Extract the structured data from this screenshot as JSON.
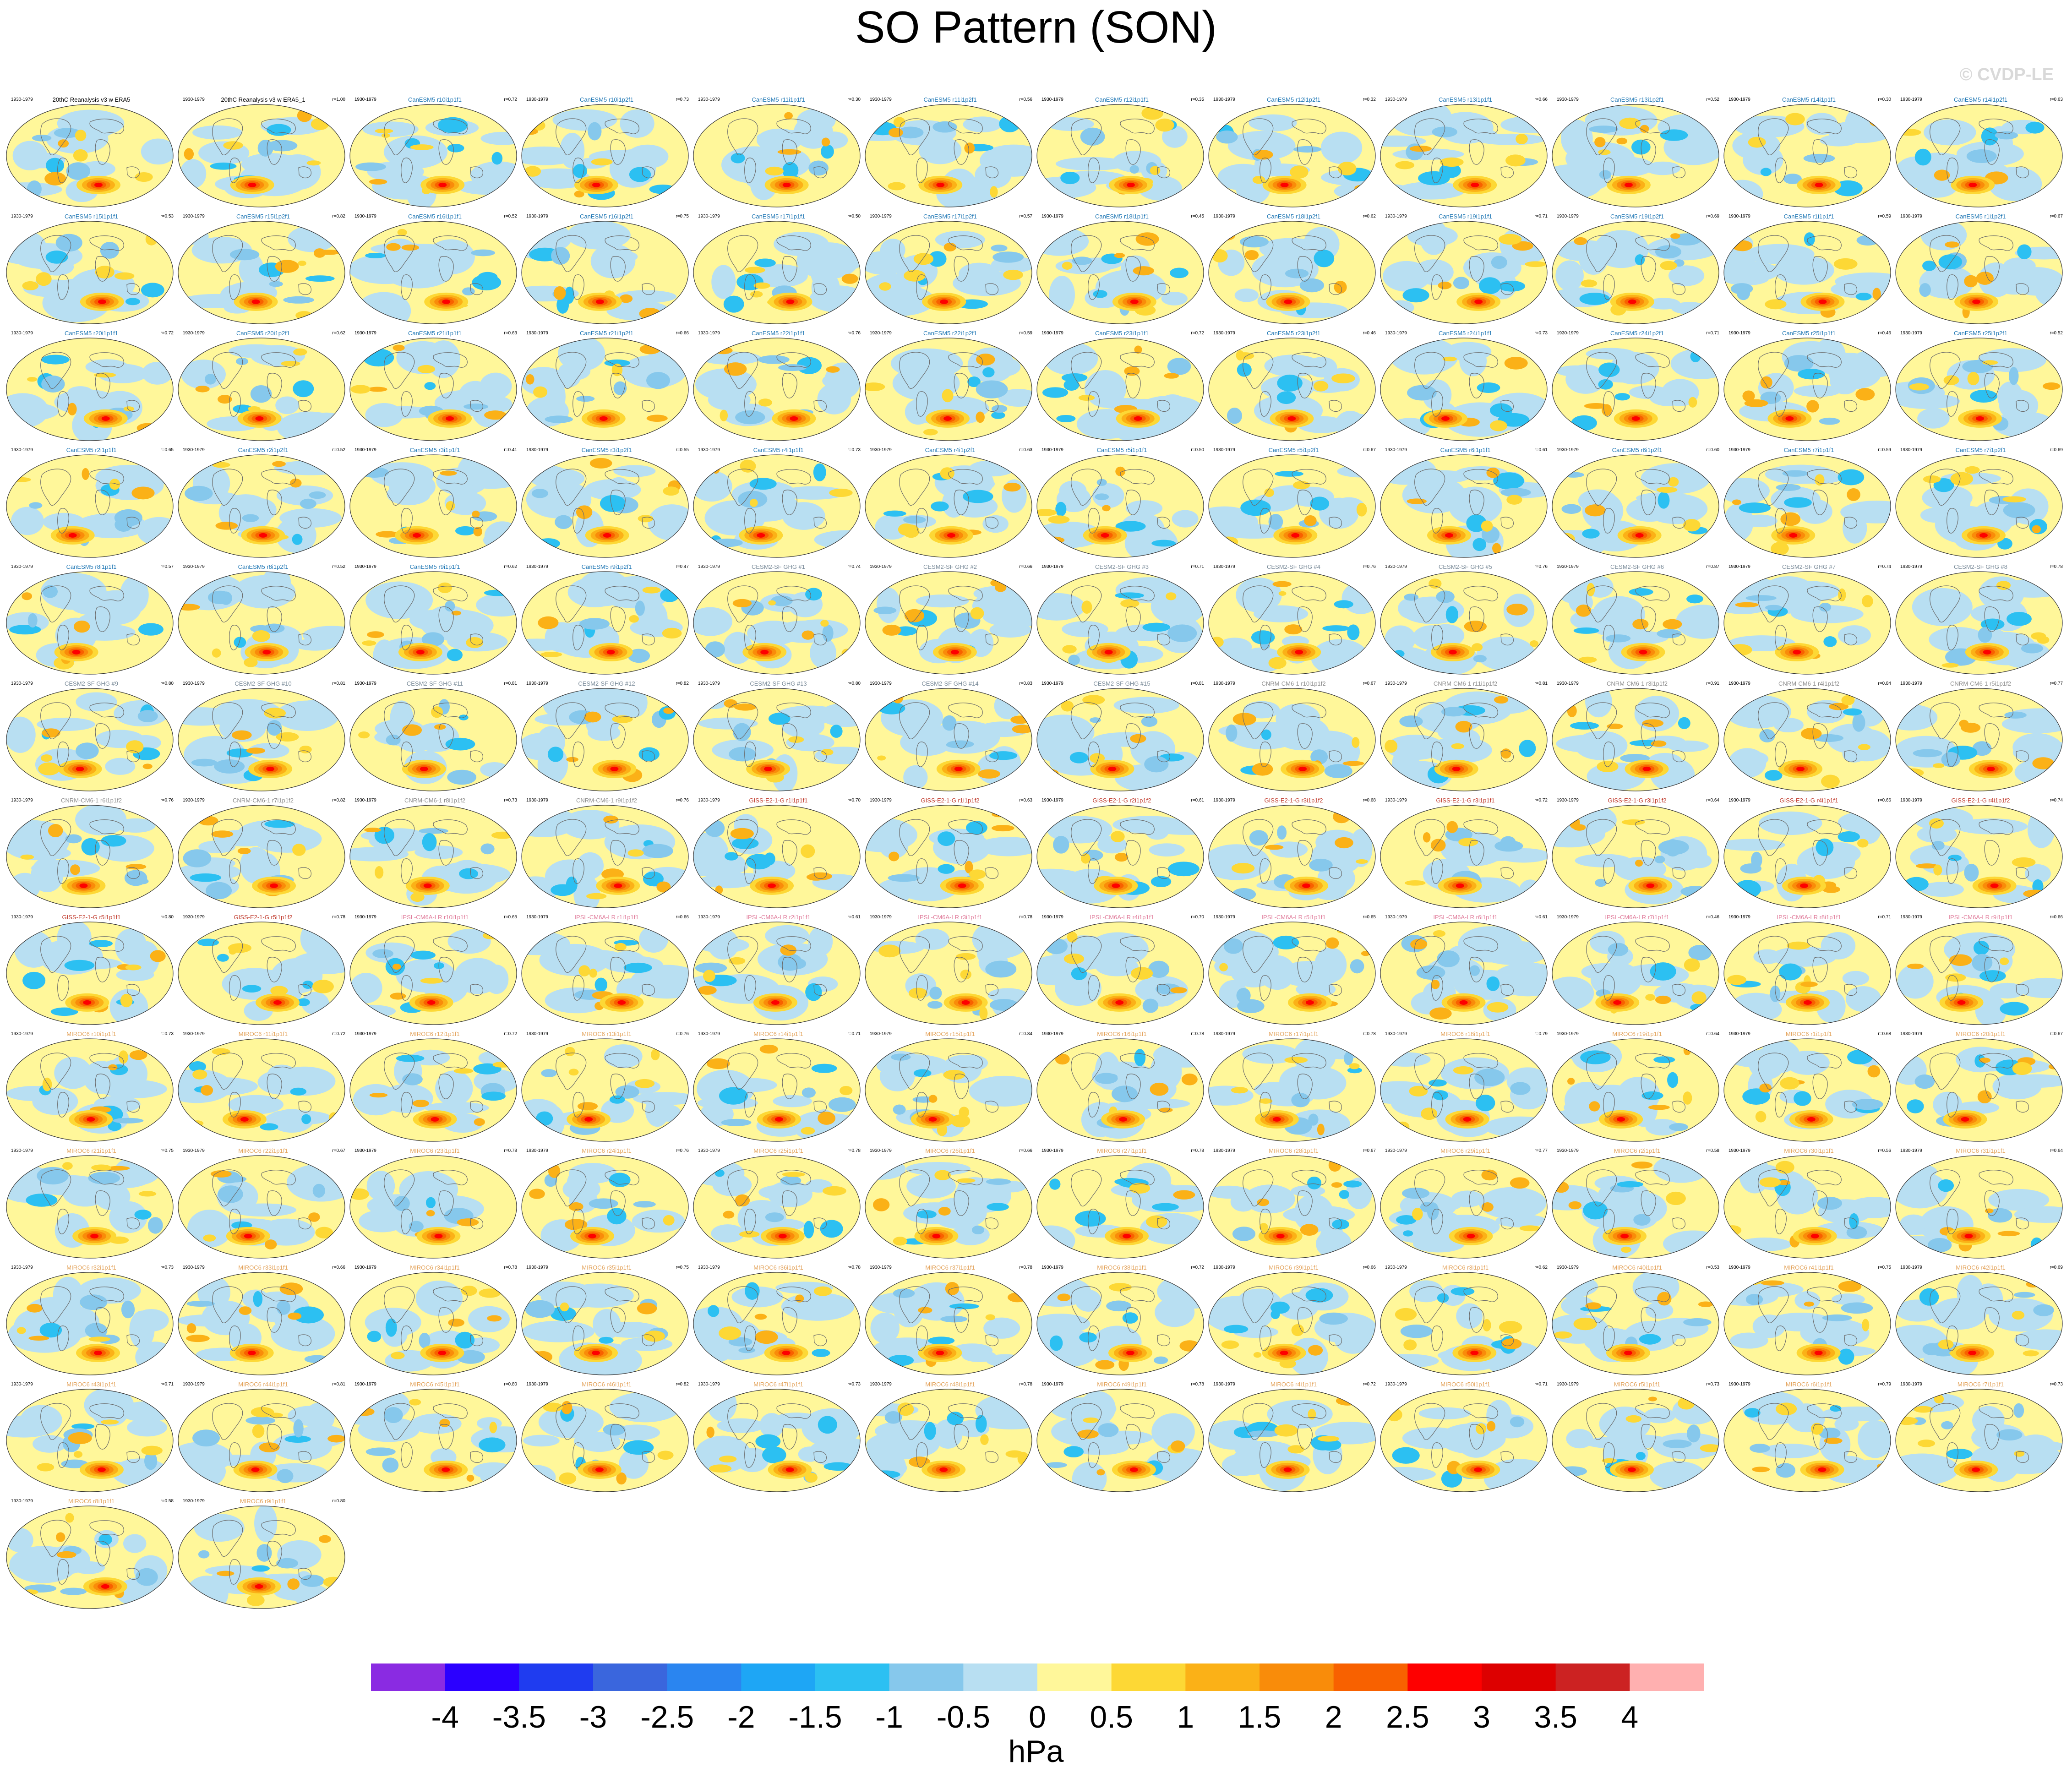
{
  "title": "SO Pattern (SON)",
  "copyright": "© CVDP-LE",
  "chart_data": {
    "type": "heatmap",
    "title": "SO Pattern (SON)",
    "period": "1930-1979",
    "colorbar": {
      "units": "hPa",
      "ticks": [
        "-4",
        "-3.5",
        "-3",
        "-2.5",
        "-2",
        "-1.5",
        "-1",
        "-0.5",
        "0",
        "0.5",
        "1",
        "1.5",
        "2",
        "2.5",
        "3",
        "3.5",
        "4"
      ],
      "colors": [
        "#8a2be2",
        "#2b00ff",
        "#1f3cf0",
        "#3a66dd",
        "#2a85f0",
        "#1ea6f5",
        "#2cc0f2",
        "#86c8ec",
        "#b8dff2",
        "#fff79a",
        "#fdd835",
        "#fbb117",
        "#f98c0a",
        "#f86100",
        "#fe0000",
        "#dd0000",
        "#cc2222",
        "#ffb0b0"
      ]
    },
    "panels": [
      {
        "name": "20thC Reanalysis v3 w ERA5",
        "corr": "",
        "color": "#000000"
      },
      {
        "name": "20thC Reanalysis v3 w ERA5_1",
        "corr": "r=1.00",
        "color": "#000000"
      },
      {
        "name": "CanESM5 r10i1p1f1",
        "corr": "r=0.72",
        "color": "#1f77b4"
      },
      {
        "name": "CanESM5 r10i1p2f1",
        "corr": "r=0.73",
        "color": "#1f77b4"
      },
      {
        "name": "CanESM5 r11i1p1f1",
        "corr": "r=0.30",
        "color": "#1f77b4"
      },
      {
        "name": "CanESM5 r11i1p2f1",
        "corr": "r=0.56",
        "color": "#1f77b4"
      },
      {
        "name": "CanESM5 r12i1p1f1",
        "corr": "r=0.35",
        "color": "#1f77b4"
      },
      {
        "name": "CanESM5 r12i1p2f1",
        "corr": "r=0.32",
        "color": "#1f77b4"
      },
      {
        "name": "CanESM5 r13i1p1f1",
        "corr": "r=0.66",
        "color": "#1f77b4"
      },
      {
        "name": "CanESM5 r13i1p2f1",
        "corr": "r=0.52",
        "color": "#1f77b4"
      },
      {
        "name": "CanESM5 r14i1p1f1",
        "corr": "r=0.30",
        "color": "#1f77b4"
      },
      {
        "name": "CanESM5 r14i1p2f1",
        "corr": "r=0.63",
        "color": "#1f77b4"
      },
      {
        "name": "CanESM5 r15i1p1f1",
        "corr": "r=0.53",
        "color": "#1f77b4"
      },
      {
        "name": "CanESM5 r15i1p2f1",
        "corr": "r=0.82",
        "color": "#1f77b4"
      },
      {
        "name": "CanESM5 r16i1p1f1",
        "corr": "r=0.52",
        "color": "#1f77b4"
      },
      {
        "name": "CanESM5 r16i1p2f1",
        "corr": "r=0.75",
        "color": "#1f77b4"
      },
      {
        "name": "CanESM5 r17i1p1f1",
        "corr": "r=0.50",
        "color": "#1f77b4"
      },
      {
        "name": "CanESM5 r17i1p2f1",
        "corr": "r=0.57",
        "color": "#1f77b4"
      },
      {
        "name": "CanESM5 r18i1p1f1",
        "corr": "r=0.45",
        "color": "#1f77b4"
      },
      {
        "name": "CanESM5 r18i1p2f1",
        "corr": "r=0.62",
        "color": "#1f77b4"
      },
      {
        "name": "CanESM5 r19i1p1f1",
        "corr": "r=0.71",
        "color": "#1f77b4"
      },
      {
        "name": "CanESM5 r19i1p2f1",
        "corr": "r=0.69",
        "color": "#1f77b4"
      },
      {
        "name": "CanESM5 r1i1p1f1",
        "corr": "r=0.59",
        "color": "#1f77b4"
      },
      {
        "name": "CanESM5 r1i1p2f1",
        "corr": "r=0.67",
        "color": "#1f77b4"
      },
      {
        "name": "CanESM5 r20i1p1f1",
        "corr": "r=0.72",
        "color": "#1f77b4"
      },
      {
        "name": "CanESM5 r20i1p2f1",
        "corr": "r=0.62",
        "color": "#1f77b4"
      },
      {
        "name": "CanESM5 r21i1p1f1",
        "corr": "r=0.63",
        "color": "#1f77b4"
      },
      {
        "name": "CanESM5 r21i1p2f1",
        "corr": "r=0.66",
        "color": "#1f77b4"
      },
      {
        "name": "CanESM5 r22i1p1f1",
        "corr": "r=0.76",
        "color": "#1f77b4"
      },
      {
        "name": "CanESM5 r22i1p2f1",
        "corr": "r=0.59",
        "color": "#1f77b4"
      },
      {
        "name": "CanESM5 r23i1p1f1",
        "corr": "r=0.72",
        "color": "#1f77b4"
      },
      {
        "name": "CanESM5 r23i1p2f1",
        "corr": "r=0.46",
        "color": "#1f77b4"
      },
      {
        "name": "CanESM5 r24i1p1f1",
        "corr": "r=0.73",
        "color": "#1f77b4"
      },
      {
        "name": "CanESM5 r24i1p2f1",
        "corr": "r=0.71",
        "color": "#1f77b4"
      },
      {
        "name": "CanESM5 r25i1p1f1",
        "corr": "r=0.46",
        "color": "#1f77b4"
      },
      {
        "name": "CanESM5 r25i1p2f1",
        "corr": "r=0.52",
        "color": "#1f77b4"
      },
      {
        "name": "CanESM5 r2i1p1f1",
        "corr": "r=0.65",
        "color": "#1f77b4"
      },
      {
        "name": "CanESM5 r2i1p2f1",
        "corr": "r=0.52",
        "color": "#1f77b4"
      },
      {
        "name": "CanESM5 r3i1p1f1",
        "corr": "r=0.41",
        "color": "#1f77b4"
      },
      {
        "name": "CanESM5 r3i1p2f1",
        "corr": "r=0.55",
        "color": "#1f77b4"
      },
      {
        "name": "CanESM5 r4i1p1f1",
        "corr": "r=0.73",
        "color": "#1f77b4"
      },
      {
        "name": "CanESM5 r4i1p2f1",
        "corr": "r=0.63",
        "color": "#1f77b4"
      },
      {
        "name": "CanESM5 r5i1p1f1",
        "corr": "r=0.50",
        "color": "#1f77b4"
      },
      {
        "name": "CanESM5 r5i1p2f1",
        "corr": "r=0.67",
        "color": "#1f77b4"
      },
      {
        "name": "CanESM5 r6i1p1f1",
        "corr": "r=0.61",
        "color": "#1f77b4"
      },
      {
        "name": "CanESM5 r6i1p2f1",
        "corr": "r=0.60",
        "color": "#1f77b4"
      },
      {
        "name": "CanESM5 r7i1p1f1",
        "corr": "r=0.59",
        "color": "#1f77b4"
      },
      {
        "name": "CanESM5 r7i1p2f1",
        "corr": "r=0.69",
        "color": "#1f77b4"
      },
      {
        "name": "CanESM5 r8i1p1f1",
        "corr": "r=0.57",
        "color": "#1f77b4"
      },
      {
        "name": "CanESM5 r8i1p2f1",
        "corr": "r=0.52",
        "color": "#1f77b4"
      },
      {
        "name": "CanESM5 r9i1p1f1",
        "corr": "r=0.62",
        "color": "#1f77b4"
      },
      {
        "name": "CanESM5 r9i1p2f1",
        "corr": "r=0.47",
        "color": "#1f77b4"
      },
      {
        "name": "CESM2-SF GHG #1",
        "corr": "r=0.74",
        "color": "#7a8b99"
      },
      {
        "name": "CESM2-SF GHG #2",
        "corr": "r=0.66",
        "color": "#7a8b99"
      },
      {
        "name": "CESM2-SF GHG #3",
        "corr": "r=0.71",
        "color": "#7a8b99"
      },
      {
        "name": "CESM2-SF GHG #4",
        "corr": "r=0.76",
        "color": "#7a8b99"
      },
      {
        "name": "CESM2-SF GHG #5",
        "corr": "r=0.76",
        "color": "#7a8b99"
      },
      {
        "name": "CESM2-SF GHG #6",
        "corr": "r=0.87",
        "color": "#7a8b99"
      },
      {
        "name": "CESM2-SF GHG #7",
        "corr": "r=0.74",
        "color": "#7a8b99"
      },
      {
        "name": "CESM2-SF GHG #8",
        "corr": "r=0.78",
        "color": "#7a8b99"
      },
      {
        "name": "CESM2-SF GHG #9",
        "corr": "r=0.80",
        "color": "#7a8b99"
      },
      {
        "name": "CESM2-SF GHG #10",
        "corr": "r=0.81",
        "color": "#7a8b99"
      },
      {
        "name": "CESM2-SF GHG #11",
        "corr": "r=0.81",
        "color": "#7a8b99"
      },
      {
        "name": "CESM2-SF GHG #12",
        "corr": "r=0.82",
        "color": "#7a8b99"
      },
      {
        "name": "CESM2-SF GHG #13",
        "corr": "r=0.80",
        "color": "#7a8b99"
      },
      {
        "name": "CESM2-SF GHG #14",
        "corr": "r=0.83",
        "color": "#7a8b99"
      },
      {
        "name": "CESM2-SF GHG #15",
        "corr": "r=0.81",
        "color": "#7a8b99"
      },
      {
        "name": "CNRM-CM6-1 r10i1p1f2",
        "corr": "r=0.67",
        "color": "#8c8c8c"
      },
      {
        "name": "CNRM-CM6-1 r11i1p1f2",
        "corr": "r=0.81",
        "color": "#8c8c8c"
      },
      {
        "name": "CNRM-CM6-1 r3i1p1f2",
        "corr": "r=0.91",
        "color": "#8c8c8c"
      },
      {
        "name": "CNRM-CM6-1 r4i1p1f2",
        "corr": "r=0.84",
        "color": "#8c8c8c"
      },
      {
        "name": "CNRM-CM6-1 r5i1p1f2",
        "corr": "r=0.77",
        "color": "#8c8c8c"
      },
      {
        "name": "CNRM-CM6-1 r6i1p1f2",
        "corr": "r=0.76",
        "color": "#8c8c8c"
      },
      {
        "name": "CNRM-CM6-1 r7i1p1f2",
        "corr": "r=0.82",
        "color": "#8c8c8c"
      },
      {
        "name": "CNRM-CM6-1 r8i1p1f2",
        "corr": "r=0.73",
        "color": "#8c8c8c"
      },
      {
        "name": "CNRM-CM6-1 r9i1p1f2",
        "corr": "r=0.76",
        "color": "#8c8c8c"
      },
      {
        "name": "GISS-E2-1-G r1i1p1f1",
        "corr": "r=0.70",
        "color": "#c0392b"
      },
      {
        "name": "GISS-E2-1-G r1i1p1f2",
        "corr": "r=0.63",
        "color": "#c0392b"
      },
      {
        "name": "GISS-E2-1-G r2i1p1f2",
        "corr": "r=0.61",
        "color": "#c0392b"
      },
      {
        "name": "GISS-E2-1-G r3i1p1f2",
        "corr": "r=0.68",
        "color": "#c0392b"
      },
      {
        "name": "GISS-E2-1-G r3i1p1f1",
        "corr": "r=0.72",
        "color": "#c0392b"
      },
      {
        "name": "GISS-E2-1-G r3i1p1f2",
        "corr": "r=0.64",
        "color": "#c0392b"
      },
      {
        "name": "GISS-E2-1-G r4i1p1f1",
        "corr": "r=0.66",
        "color": "#c0392b"
      },
      {
        "name": "GISS-E2-1-G r4i1p1f2",
        "corr": "r=0.74",
        "color": "#c0392b"
      },
      {
        "name": "GISS-E2-1-G r5i1p1f1",
        "corr": "r=0.80",
        "color": "#c0392b"
      },
      {
        "name": "GISS-E2-1-G r5i1p1f2",
        "corr": "r=0.78",
        "color": "#c0392b"
      },
      {
        "name": "IPSL-CM6A-LR r10i1p1f1",
        "corr": "r=0.65",
        "color": "#e07b9a"
      },
      {
        "name": "IPSL-CM6A-LR r1i1p1f1",
        "corr": "r=0.66",
        "color": "#e07b9a"
      },
      {
        "name": "IPSL-CM6A-LR r2i1p1f1",
        "corr": "r=0.61",
        "color": "#e07b9a"
      },
      {
        "name": "IPSL-CM6A-LR r3i1p1f1",
        "corr": "r=0.78",
        "color": "#e07b9a"
      },
      {
        "name": "IPSL-CM6A-LR r4i1p1f1",
        "corr": "r=0.70",
        "color": "#e07b9a"
      },
      {
        "name": "IPSL-CM6A-LR r5i1p1f1",
        "corr": "r=0.65",
        "color": "#e07b9a"
      },
      {
        "name": "IPSL-CM6A-LR r6i1p1f1",
        "corr": "r=0.61",
        "color": "#e07b9a"
      },
      {
        "name": "IPSL-CM6A-LR r7i1p1f1",
        "corr": "r=0.46",
        "color": "#e07b9a"
      },
      {
        "name": "IPSL-CM6A-LR r8i1p1f1",
        "corr": "r=0.71",
        "color": "#e07b9a"
      },
      {
        "name": "IPSL-CM6A-LR r9i1p1f1",
        "corr": "r=0.66",
        "color": "#e07b9a"
      },
      {
        "name": "MIROC6 r10i1p1f1",
        "corr": "r=0.73",
        "color": "#e3a35b"
      },
      {
        "name": "MIROC6 r11i1p1f1",
        "corr": "r=0.72",
        "color": "#e3a35b"
      },
      {
        "name": "MIROC6 r12i1p1f1",
        "corr": "r=0.72",
        "color": "#e3a35b"
      },
      {
        "name": "MIROC6 r13i1p1f1",
        "corr": "r=0.76",
        "color": "#e3a35b"
      },
      {
        "name": "MIROC6 r14i1p1f1",
        "corr": "r=0.71",
        "color": "#e3a35b"
      },
      {
        "name": "MIROC6 r15i1p1f1",
        "corr": "r=0.84",
        "color": "#e3a35b"
      },
      {
        "name": "MIROC6 r16i1p1f1",
        "corr": "r=0.78",
        "color": "#e3a35b"
      },
      {
        "name": "MIROC6 r17i1p1f1",
        "corr": "r=0.78",
        "color": "#e3a35b"
      },
      {
        "name": "MIROC6 r18i1p1f1",
        "corr": "r=0.79",
        "color": "#e3a35b"
      },
      {
        "name": "MIROC6 r19i1p1f1",
        "corr": "r=0.64",
        "color": "#e3a35b"
      },
      {
        "name": "MIROC6 r1i1p1f1",
        "corr": "r=0.68",
        "color": "#e3a35b"
      },
      {
        "name": "MIROC6 r20i1p1f1",
        "corr": "r=0.67",
        "color": "#e3a35b"
      },
      {
        "name": "MIROC6 r21i1p1f1",
        "corr": "r=0.75",
        "color": "#e3a35b"
      },
      {
        "name": "MIROC6 r22i1p1f1",
        "corr": "r=0.67",
        "color": "#e3a35b"
      },
      {
        "name": "MIROC6 r23i1p1f1",
        "corr": "r=0.78",
        "color": "#e3a35b"
      },
      {
        "name": "MIROC6 r24i1p1f1",
        "corr": "r=0.76",
        "color": "#e3a35b"
      },
      {
        "name": "MIROC6 r25i1p1f1",
        "corr": "r=0.78",
        "color": "#e3a35b"
      },
      {
        "name": "MIROC6 r26i1p1f1",
        "corr": "r=0.66",
        "color": "#e3a35b"
      },
      {
        "name": "MIROC6 r27i1p1f1",
        "corr": "r=0.78",
        "color": "#e3a35b"
      },
      {
        "name": "MIROC6 r28i1p1f1",
        "corr": "r=0.67",
        "color": "#e3a35b"
      },
      {
        "name": "MIROC6 r29i1p1f1",
        "corr": "r=0.77",
        "color": "#e3a35b"
      },
      {
        "name": "MIROC6 r2i1p1f1",
        "corr": "r=0.58",
        "color": "#e3a35b"
      },
      {
        "name": "MIROC6 r30i1p1f1",
        "corr": "r=0.56",
        "color": "#e3a35b"
      },
      {
        "name": "MIROC6 r31i1p1f1",
        "corr": "r=0.64",
        "color": "#e3a35b"
      },
      {
        "name": "MIROC6 r32i1p1f1",
        "corr": "r=0.73",
        "color": "#e3a35b"
      },
      {
        "name": "MIROC6 r33i1p1f1",
        "corr": "r=0.66",
        "color": "#e3a35b"
      },
      {
        "name": "MIROC6 r34i1p1f1",
        "corr": "r=0.78",
        "color": "#e3a35b"
      },
      {
        "name": "MIROC6 r35i1p1f1",
        "corr": "r=0.75",
        "color": "#e3a35b"
      },
      {
        "name": "MIROC6 r36i1p1f1",
        "corr": "r=0.78",
        "color": "#e3a35b"
      },
      {
        "name": "MIROC6 r37i1p1f1",
        "corr": "r=0.78",
        "color": "#e3a35b"
      },
      {
        "name": "MIROC6 r38i1p1f1",
        "corr": "r=0.72",
        "color": "#e3a35b"
      },
      {
        "name": "MIROC6 r39i1p1f1",
        "corr": "r=0.66",
        "color": "#e3a35b"
      },
      {
        "name": "MIROC6 r3i1p1f1",
        "corr": "r=0.62",
        "color": "#e3a35b"
      },
      {
        "name": "MIROC6 r40i1p1f1",
        "corr": "r=0.53",
        "color": "#e3a35b"
      },
      {
        "name": "MIROC6 r41i1p1f1",
        "corr": "r=0.75",
        "color": "#e3a35b"
      },
      {
        "name": "MIROC6 r42i1p1f1",
        "corr": "r=0.69",
        "color": "#e3a35b"
      },
      {
        "name": "MIROC6 r43i1p1f1",
        "corr": "r=0.71",
        "color": "#e3a35b"
      },
      {
        "name": "MIROC6 r44i1p1f1",
        "corr": "r=0.81",
        "color": "#e3a35b"
      },
      {
        "name": "MIROC6 r45i1p1f1",
        "corr": "r=0.80",
        "color": "#e3a35b"
      },
      {
        "name": "MIROC6 r46i1p1f1",
        "corr": "r=0.82",
        "color": "#e3a35b"
      },
      {
        "name": "MIROC6 r47i1p1f1",
        "corr": "r=0.73",
        "color": "#e3a35b"
      },
      {
        "name": "MIROC6 r48i1p1f1",
        "corr": "r=0.78",
        "color": "#e3a35b"
      },
      {
        "name": "MIROC6 r49i1p1f1",
        "corr": "r=0.78",
        "color": "#e3a35b"
      },
      {
        "name": "MIROC6 r4i1p1f1",
        "corr": "r=0.72",
        "color": "#e3a35b"
      },
      {
        "name": "MIROC6 r50i1p1f1",
        "corr": "r=0.71",
        "color": "#e3a35b"
      },
      {
        "name": "MIROC6 r5i1p1f1",
        "corr": "r=0.73",
        "color": "#e3a35b"
      },
      {
        "name": "MIROC6 r6i1p1f1",
        "corr": "r=0.79",
        "color": "#e3a35b"
      },
      {
        "name": "MIROC6 r7i1p1f1",
        "corr": "r=0.73",
        "color": "#e3a35b"
      },
      {
        "name": "MIROC6 r8i1p1f1",
        "corr": "r=0.58",
        "color": "#e3a35b"
      },
      {
        "name": "MIROC6 r9i1p1f1",
        "corr": "r=0.80",
        "color": "#e3a35b"
      }
    ]
  }
}
